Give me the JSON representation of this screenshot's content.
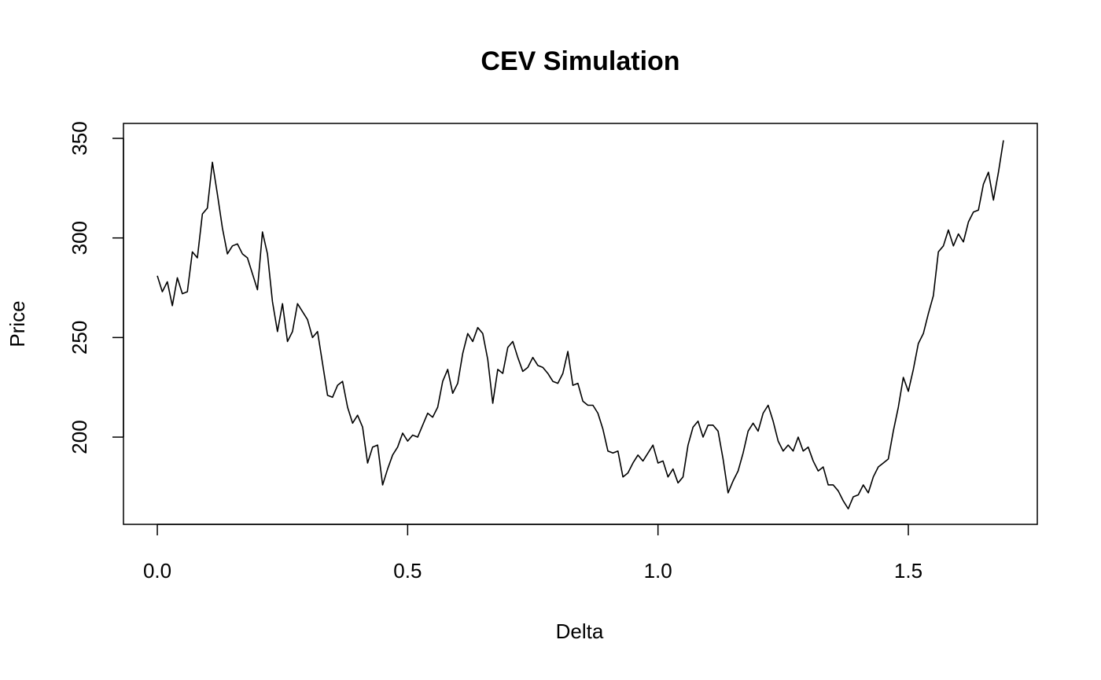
{
  "chart_data": {
    "type": "line",
    "title": "CEV Simulation",
    "x_label": "Delta",
    "y_label": "Price",
    "x": [
      0,
      0.01,
      0.02,
      0.03,
      0.04,
      0.05,
      0.06,
      0.07,
      0.08,
      0.09,
      0.1,
      0.11,
      0.12,
      0.13,
      0.14,
      0.15,
      0.16,
      0.17,
      0.18,
      0.19,
      0.2,
      0.21,
      0.22,
      0.23,
      0.24,
      0.25,
      0.26,
      0.27,
      0.28,
      0.29,
      0.3,
      0.31,
      0.32,
      0.33,
      0.34,
      0.35,
      0.36,
      0.37,
      0.38,
      0.39,
      0.4,
      0.41,
      0.42,
      0.43,
      0.44,
      0.45,
      0.46,
      0.47,
      0.48,
      0.49,
      0.5,
      0.51,
      0.52,
      0.53,
      0.54,
      0.55,
      0.56,
      0.57,
      0.58,
      0.59,
      0.6,
      0.61,
      0.62,
      0.63,
      0.64,
      0.65,
      0.66,
      0.67,
      0.68,
      0.69,
      0.7,
      0.71,
      0.72,
      0.73,
      0.74,
      0.75,
      0.76,
      0.77,
      0.78,
      0.79,
      0.8,
      0.81,
      0.82,
      0.83,
      0.84,
      0.85,
      0.86,
      0.87,
      0.88,
      0.89,
      0.9,
      0.91,
      0.92,
      0.93,
      0.94,
      0.95,
      0.96,
      0.97,
      0.98,
      0.99,
      1,
      1.01,
      1.02,
      1.03,
      1.04,
      1.05,
      1.06,
      1.07,
      1.08,
      1.09,
      1.1,
      1.11,
      1.12,
      1.13,
      1.14,
      1.15,
      1.16,
      1.17,
      1.18,
      1.19,
      1.2,
      1.21,
      1.22,
      1.23,
      1.24,
      1.25,
      1.26,
      1.27,
      1.28,
      1.29,
      1.3,
      1.31,
      1.32,
      1.33,
      1.34,
      1.35,
      1.36,
      1.37,
      1.38,
      1.39,
      1.4,
      1.41,
      1.42,
      1.43,
      1.44,
      1.45,
      1.46,
      1.47,
      1.48,
      1.49,
      1.5,
      1.51,
      1.52,
      1.53,
      1.54,
      1.55,
      1.56,
      1.57,
      1.58,
      1.59,
      1.6,
      1.61,
      1.62,
      1.63,
      1.64,
      1.65,
      1.66,
      1.67,
      1.68,
      1.69
    ],
    "values": [
      281,
      273,
      278,
      266,
      280,
      272,
      273,
      293,
      290,
      312,
      315,
      338,
      322,
      305,
      292,
      296,
      297,
      292,
      290,
      282,
      274,
      303,
      292,
      268,
      253,
      267,
      248,
      253,
      267,
      263,
      259,
      250,
      253,
      237,
      221,
      220,
      226,
      228,
      215,
      207,
      211,
      205,
      187,
      195,
      196,
      176,
      184,
      191,
      195,
      202,
      198,
      201,
      200,
      206,
      212,
      210,
      215,
      228,
      234,
      222,
      227,
      242,
      252,
      248,
      255,
      252,
      239,
      217,
      234,
      232,
      245,
      248,
      240,
      233,
      235,
      240,
      236,
      235,
      232,
      228,
      227,
      232,
      243,
      226,
      227,
      218,
      216,
      216,
      212,
      204,
      193,
      192,
      193,
      180,
      182,
      187,
      191,
      188,
      192,
      196,
      187,
      188,
      180,
      184,
      177,
      180,
      196,
      205,
      208,
      200,
      206,
      206,
      203,
      189,
      172,
      178,
      183,
      192,
      203,
      207,
      203,
      212,
      216,
      208,
      198,
      193,
      196,
      193,
      200,
      193,
      195,
      188,
      183,
      185,
      176,
      176,
      173,
      168,
      164,
      170,
      171,
      176,
      172,
      180,
      185,
      187,
      189,
      203,
      215,
      230,
      223,
      234,
      247,
      252,
      262,
      271,
      293,
      296,
      304,
      296,
      302,
      298,
      308,
      313,
      314,
      327,
      333,
      319,
      333,
      349
    ],
    "color": "#000000",
    "xlim": [
      -0.0676,
      1.7576
    ],
    "ylim": [
      156.2,
      357.5
    ],
    "xticks": [
      {
        "value": 0,
        "label": "0.0"
      },
      0.5,
      {
        "value": 1,
        "label": "1.0"
      },
      1.5
    ],
    "yticks": [
      200,
      250,
      300,
      350
    ]
  }
}
